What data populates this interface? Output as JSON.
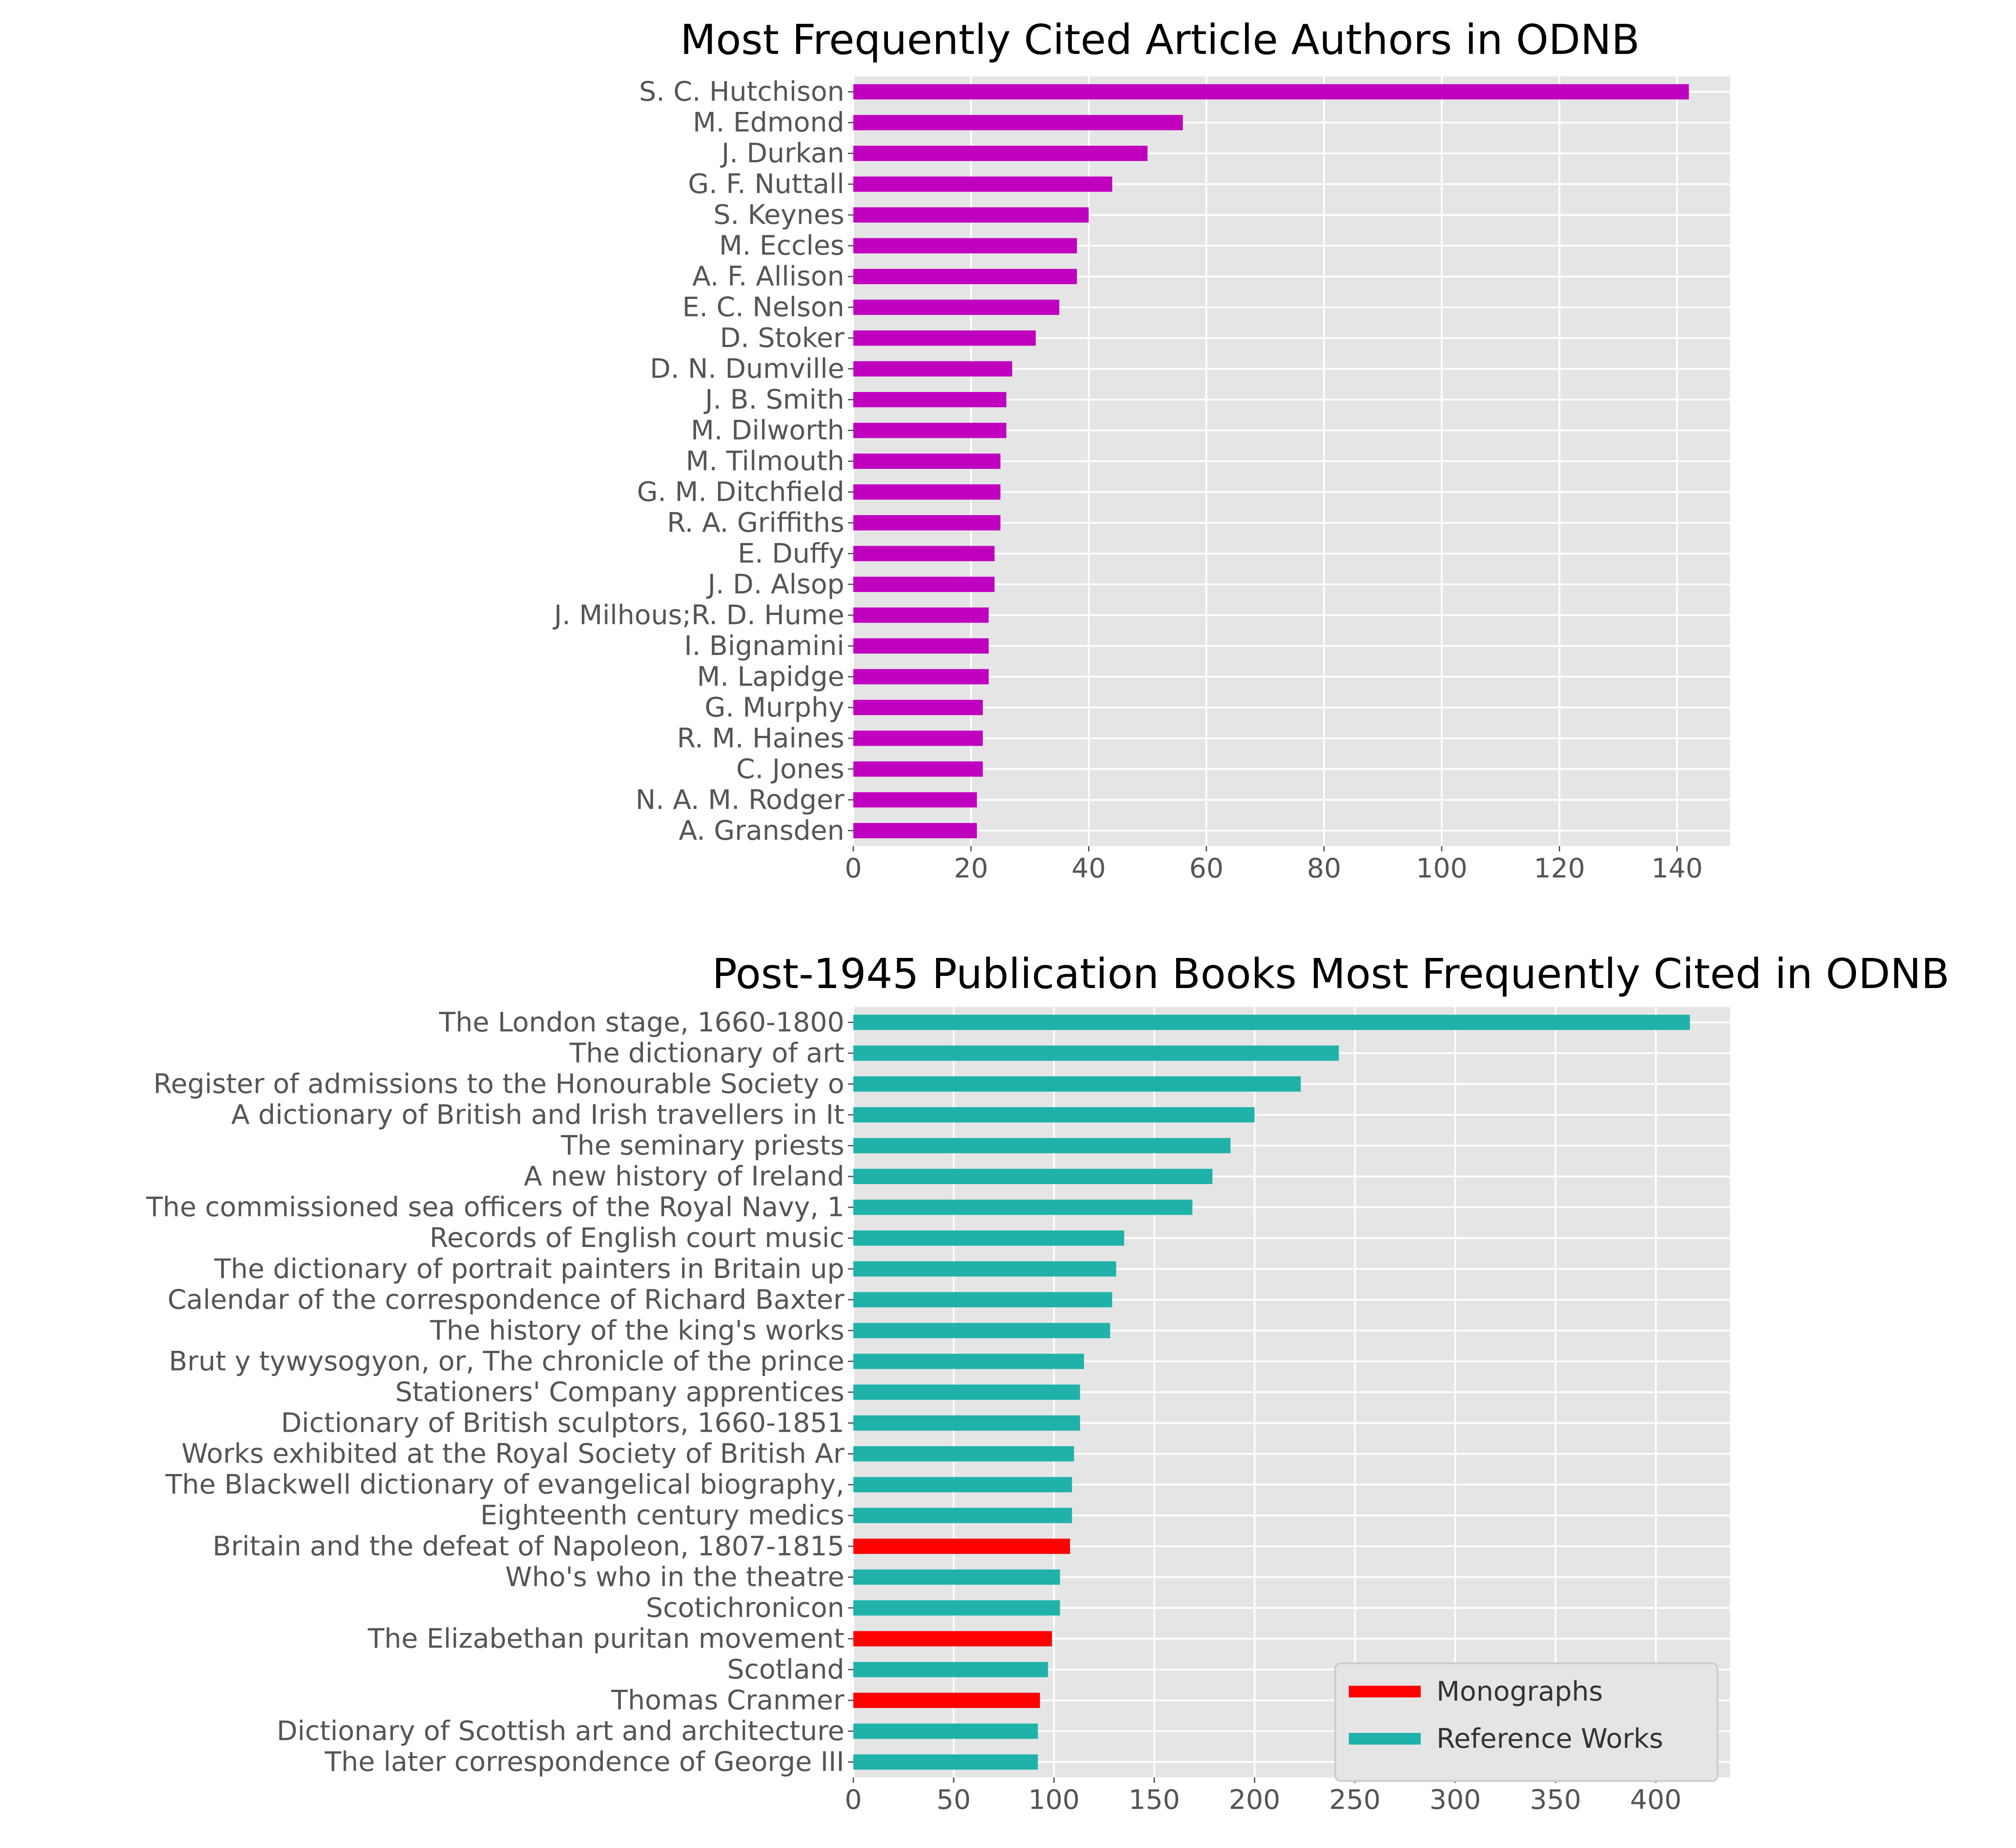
{
  "colors": {
    "axes_background": "#E5E5E5",
    "grid": "#FFFFFF",
    "tick_text": "#555555",
    "title_text": "#000000",
    "authors_bar": "#BF00BF",
    "monographs": "#FF0000",
    "reference_works": "#20B2AA"
  },
  "chart_data": [
    {
      "type": "bar",
      "orientation": "horizontal",
      "title": "Most Frequently Cited Article Authors in ODNB",
      "xlabel": "",
      "ylabel": "",
      "xlim": [
        0,
        149
      ],
      "xticks": [
        0,
        20,
        40,
        60,
        80,
        100,
        120,
        140
      ],
      "grid": true,
      "categories": [
        "S. C. Hutchison",
        "M. Edmond",
        "J. Durkan",
        "G. F. Nuttall",
        "S. Keynes",
        "M. Eccles",
        "A. F. Allison",
        "E. C. Nelson",
        "D. Stoker",
        "D. N. Dumville",
        "J. B. Smith",
        "M. Dilworth",
        "M. Tilmouth",
        "G. M. Ditchfield",
        "R. A. Griffiths",
        "E. Duffy",
        "J. D. Alsop",
        "J. Milhous;R. D. Hume",
        "I. Bignamini",
        "M. Lapidge",
        "G. Murphy",
        "R. M. Haines",
        "C. Jones",
        "N. A. M. Rodger",
        "A. Gransden"
      ],
      "values": [
        142,
        56,
        50,
        44,
        40,
        38,
        38,
        35,
        31,
        27,
        26,
        26,
        25,
        25,
        25,
        24,
        24,
        23,
        23,
        23,
        22,
        22,
        22,
        21,
        21
      ],
      "color": "#BF00BF"
    },
    {
      "type": "bar",
      "orientation": "horizontal",
      "title": "Post-1945 Publication Books Most Frequently Cited in ODNB",
      "xlabel": "",
      "ylabel": "",
      "xlim": [
        0,
        437
      ],
      "xticks": [
        0,
        50,
        100,
        150,
        200,
        250,
        300,
        350,
        400
      ],
      "grid": true,
      "legend": {
        "position": "lower-right",
        "entries": [
          "Monographs",
          "Reference Works"
        ]
      },
      "categories": [
        "The London stage, 1660-1800",
        "The dictionary of art",
        "Register of admissions to the Honourable Society o",
        "A dictionary of British and Irish travellers in It",
        "The seminary priests",
        "A new history of Ireland",
        "The commissioned sea officers of the Royal Navy, 1",
        "Records of English court music",
        "The dictionary of portrait painters in Britain up ",
        "Calendar of the correspondence of Richard Baxter",
        "The history of the king's works",
        "Brut y tywysogyon, or, The chronicle of the prince",
        "Stationers' Company apprentices",
        "Dictionary of British sculptors, 1660-1851",
        "Works exhibited at the Royal Society of British Ar",
        "The Blackwell dictionary of evangelical biography,",
        "Eighteenth century medics",
        "Britain and the defeat of Napoleon, 1807-1815",
        "Who's who in the theatre",
        "Scotichronicon",
        "The Elizabethan puritan movement",
        "Scotland",
        "Thomas Cranmer",
        "Dictionary of Scottish art and architecture",
        "The later correspondence of George III"
      ],
      "values": [
        417,
        242,
        223,
        200,
        188,
        179,
        169,
        135,
        131,
        129,
        128,
        115,
        113,
        113,
        110,
        109,
        109,
        108,
        103,
        103,
        99,
        97,
        93,
        92,
        92
      ],
      "series_labels": [
        "Reference Works",
        "Reference Works",
        "Reference Works",
        "Reference Works",
        "Reference Works",
        "Reference Works",
        "Reference Works",
        "Reference Works",
        "Reference Works",
        "Reference Works",
        "Reference Works",
        "Reference Works",
        "Reference Works",
        "Reference Works",
        "Reference Works",
        "Reference Works",
        "Reference Works",
        "Monographs",
        "Reference Works",
        "Reference Works",
        "Monographs",
        "Reference Works",
        "Monographs",
        "Reference Works",
        "Reference Works"
      ]
    }
  ]
}
